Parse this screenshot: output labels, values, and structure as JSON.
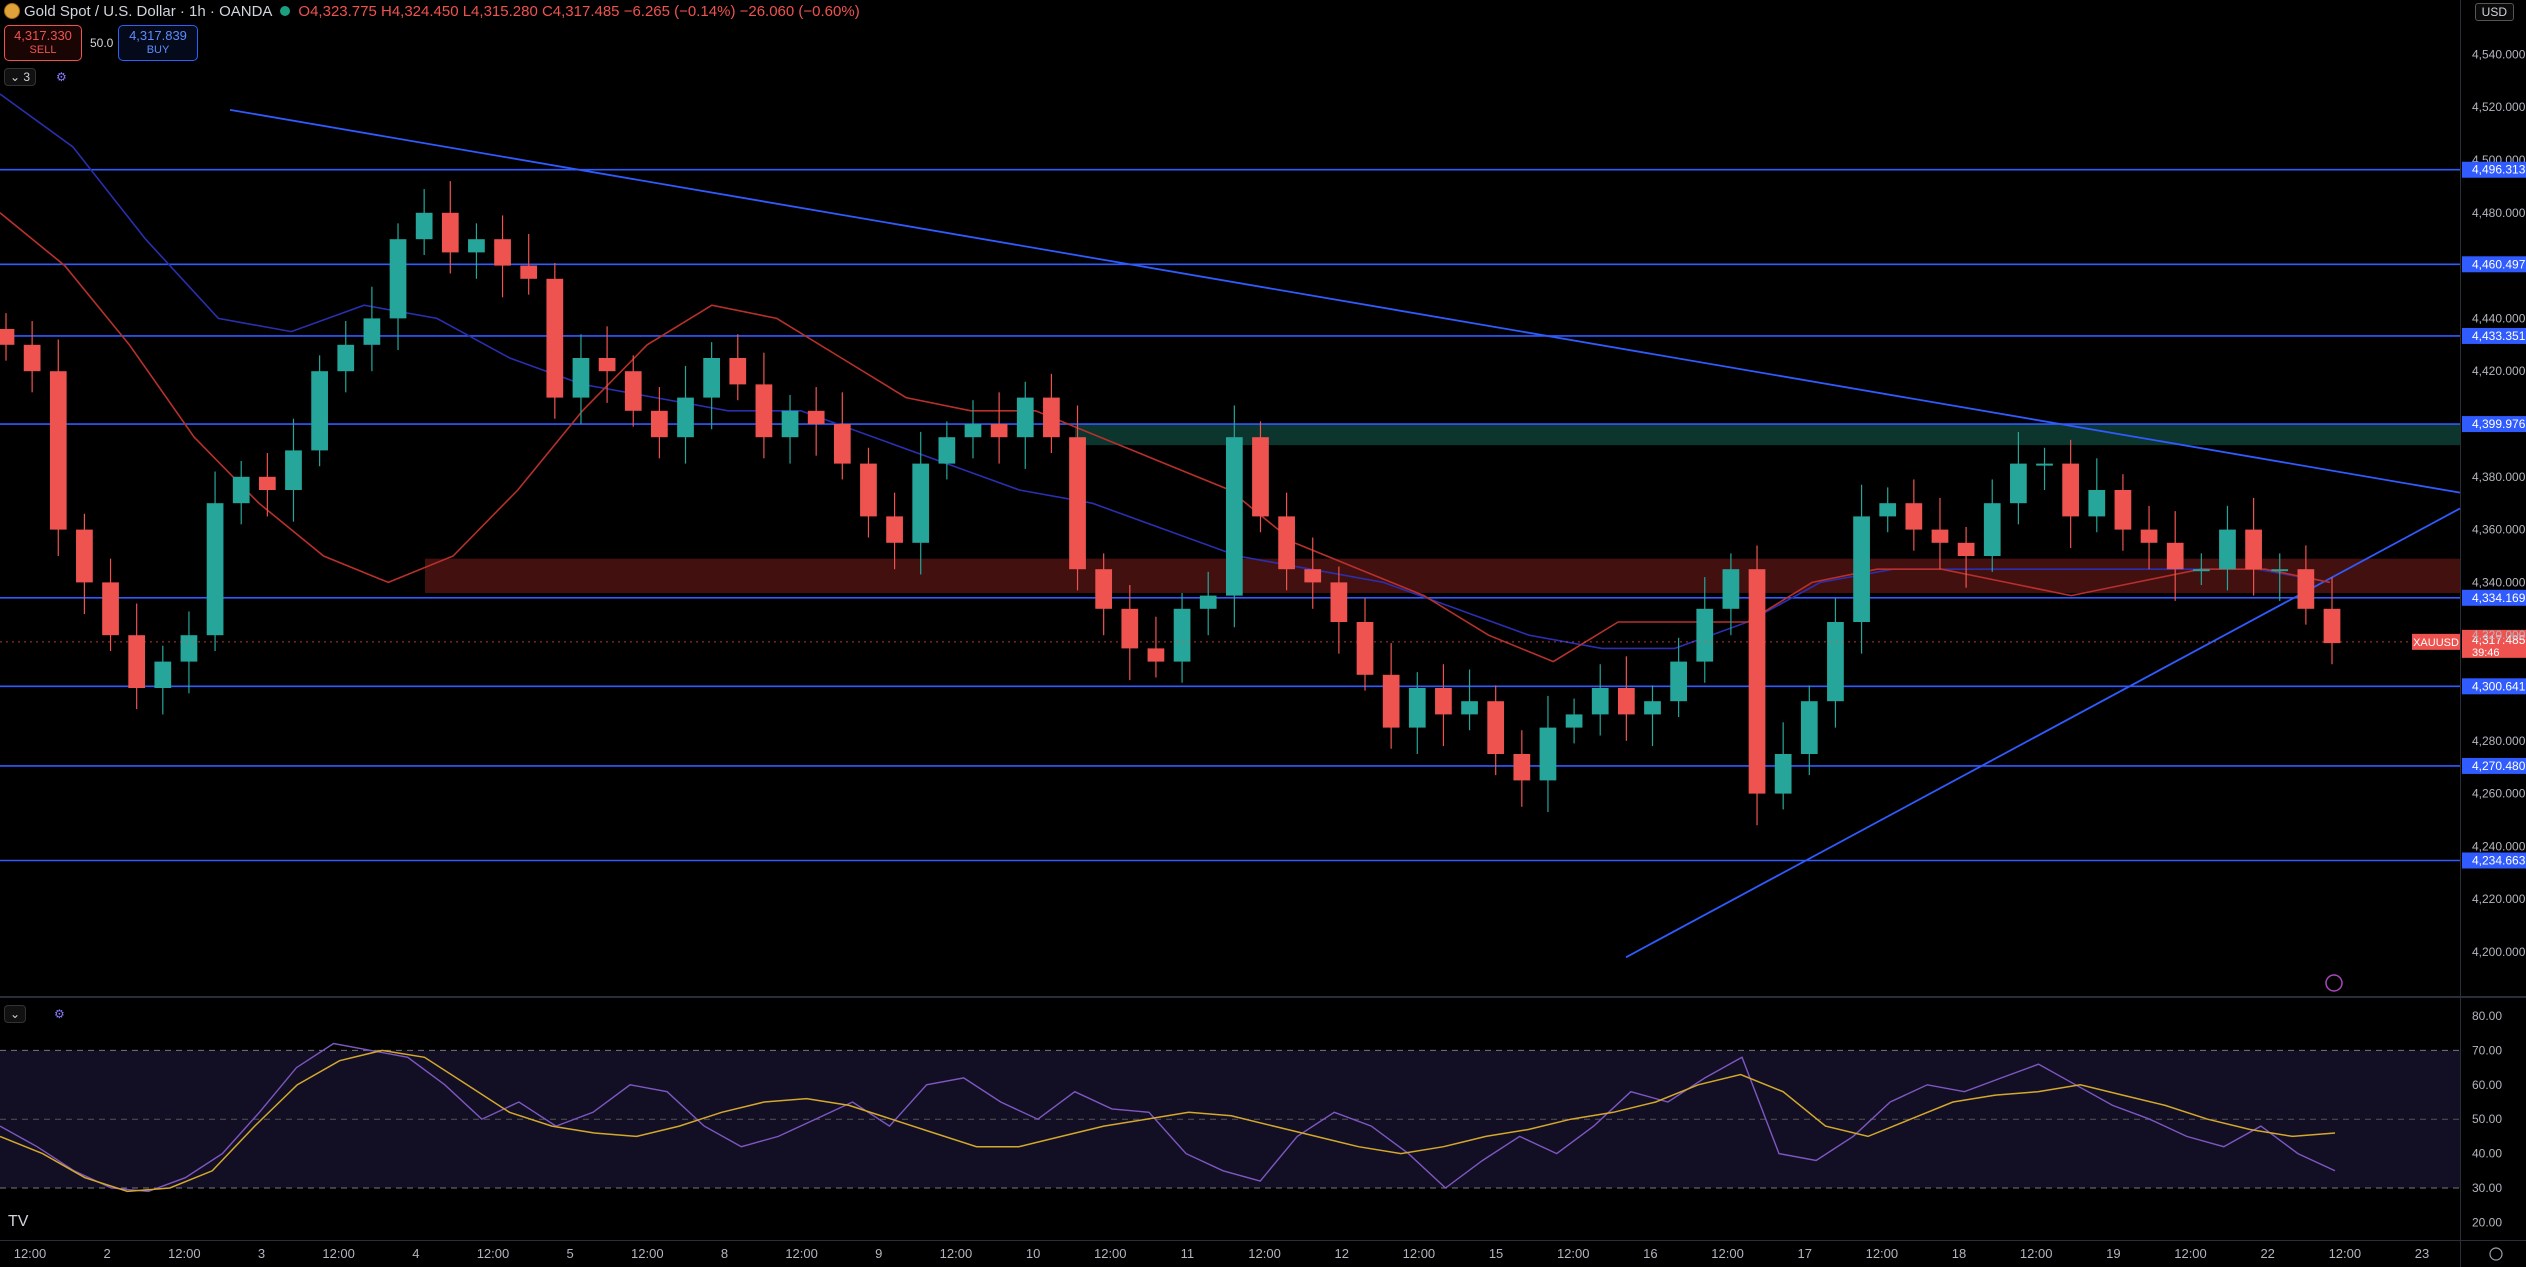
{
  "header": {
    "symbol_title": "Gold Spot / U.S. Dollar · 1h · OANDA",
    "ohlc": "O4,323.775  H4,324.450  L4,315.280  C4,317.485  −6.265 (−0.14%)  −26.060 (−0.60%)",
    "sell_price": "4,317.330",
    "sell_label": "SELL",
    "spread": "50.0",
    "buy_price": "4,317.839",
    "buy_label": "BUY",
    "indicator_count": "3",
    "currency": "USD"
  },
  "chart_data": {
    "type": "candlestick",
    "price_axis": {
      "ylim": [
        4190,
        4550
      ],
      "ticks": [
        "4,540.000",
        "4,520.000",
        "4,500.000",
        "4,480.000",
        "4,460.000",
        "4,440.000",
        "4,420.000",
        "4,400.000",
        "4,380.000",
        "4,360.000",
        "4,340.000",
        "4,320.000",
        "4,300.000",
        "4,280.000",
        "4,260.000",
        "4,240.000",
        "4,220.000",
        "4,200.000"
      ],
      "tick_values": [
        4540,
        4520,
        4500,
        4480,
        4460,
        4440,
        4420,
        4400,
        4380,
        4360,
        4340,
        4320,
        4300,
        4280,
        4260,
        4240,
        4220,
        4200
      ]
    },
    "time_axis": {
      "labels": [
        "12:00",
        "2",
        "12:00",
        "3",
        "12:00",
        "4",
        "12:00",
        "5",
        "12:00",
        "8",
        "12:00",
        "9",
        "12:00",
        "10",
        "12:00",
        "11",
        "12:00",
        "12",
        "12:00",
        "15",
        "12:00",
        "16",
        "12:00",
        "17",
        "12:00",
        "18",
        "12:00",
        "19",
        "12:00",
        "22",
        "12:00",
        "23"
      ]
    },
    "horizontal_levels": [
      {
        "value": 4496.313,
        "label": "4,496.313"
      },
      {
        "value": 4460.497,
        "label": "4,460.497"
      },
      {
        "value": 4433.351,
        "label": "4,433.351"
      },
      {
        "value": 4399.976,
        "label": "4,399.976"
      },
      {
        "value": 4334.169,
        "label": "4,334.169"
      },
      {
        "value": 4300.641,
        "label": "4,300.641"
      },
      {
        "value": 4270.48,
        "label": "4,270.480"
      },
      {
        "value": 4234.663,
        "label": "4,234.663"
      }
    ],
    "zones": [
      {
        "name": "supply",
        "from": 4392,
        "to": 4400,
        "color": "#0d3b33"
      },
      {
        "name": "demand",
        "from": 4336,
        "to": 4349,
        "color": "#4a1212"
      }
    ],
    "last_price": {
      "symbol": "XAUUSD",
      "value": 4317.485,
      "label": "4,317.485",
      "countdown": "39:46"
    },
    "close_series": [
      4430,
      4420,
      4360,
      4340,
      4320,
      4300,
      4310,
      4320,
      4370,
      4380,
      4375,
      4390,
      4420,
      4430,
      4440,
      4470,
      4480,
      4465,
      4470,
      4460,
      4455,
      4410,
      4425,
      4420,
      4405,
      4395,
      4410,
      4425,
      4415,
      4395,
      4405,
      4400,
      4385,
      4365,
      4355,
      4385,
      4395,
      4400,
      4395,
      4410,
      4395,
      4345,
      4330,
      4315,
      4310,
      4330,
      4335,
      4395,
      4365,
      4345,
      4340,
      4325,
      4305,
      4285,
      4300,
      4290,
      4295,
      4275,
      4265,
      4285,
      4290,
      4300,
      4290,
      4295,
      4310,
      4330,
      4345,
      4260,
      4275,
      4295,
      4325,
      4365,
      4370,
      4360,
      4355,
      4350,
      4370,
      4385,
      4385,
      4365,
      4375,
      4360,
      4355,
      4345,
      4345,
      4360,
      4345,
      4345,
      4330,
      4317
    ],
    "ma_red": [
      4480,
      4460,
      4430,
      4395,
      4370,
      4350,
      4340,
      4350,
      4375,
      4405,
      4430,
      4445,
      4440,
      4425,
      4410,
      4405,
      4405,
      4395,
      4385,
      4375,
      4355,
      4345,
      4335,
      4320,
      4310,
      4325,
      4325,
      4325,
      4340,
      4345,
      4345,
      4340,
      4335,
      4340,
      4345,
      4345,
      4340
    ],
    "ma_blue": [
      4525,
      4505,
      4470,
      4440,
      4435,
      4445,
      4440,
      4425,
      4415,
      4410,
      4405,
      4405,
      4395,
      4385,
      4375,
      4370,
      4360,
      4350,
      4345,
      4340,
      4330,
      4320,
      4315,
      4315,
      4325,
      4340,
      4345,
      4345,
      4345,
      4345,
      4345,
      4345,
      4340
    ],
    "trendlines": [
      {
        "name": "descending",
        "points": [
          [
            0,
            4519
          ],
          [
            1,
            4374
          ]
        ]
      },
      {
        "name": "ascending",
        "points": [
          [
            0,
            4198
          ],
          [
            1,
            4368
          ]
        ]
      }
    ],
    "rsi": {
      "ticks": [
        "80.00",
        "70.00",
        "60.00",
        "50.00",
        "40.00",
        "30.00",
        "20.00"
      ],
      "tick_values": [
        80,
        70,
        60,
        50,
        40,
        30,
        20
      ],
      "ylim": [
        18,
        82
      ],
      "band": [
        30,
        70
      ],
      "rsi_series": [
        48,
        42,
        35,
        30,
        29,
        33,
        40,
        52,
        65,
        72,
        70,
        68,
        60,
        50,
        55,
        48,
        52,
        60,
        58,
        48,
        42,
        45,
        50,
        55,
        48,
        60,
        62,
        55,
        50,
        58,
        53,
        52,
        40,
        35,
        32,
        45,
        52,
        48,
        40,
        30,
        38,
        45,
        40,
        48,
        58,
        55,
        62,
        68,
        40,
        38,
        45,
        55,
        60,
        58,
        62,
        66,
        60,
        54,
        50,
        45,
        42,
        48,
        40,
        35
      ],
      "signal_series": [
        45,
        40,
        33,
        29,
        30,
        35,
        48,
        60,
        67,
        70,
        68,
        60,
        52,
        48,
        46,
        45,
        48,
        52,
        55,
        56,
        54,
        50,
        46,
        42,
        42,
        45,
        48,
        50,
        52,
        51,
        48,
        45,
        42,
        40,
        42,
        45,
        47,
        50,
        52,
        55,
        60,
        63,
        58,
        48,
        45,
        50,
        55,
        57,
        58,
        60,
        57,
        54,
        50,
        47,
        45,
        46
      ]
    }
  }
}
